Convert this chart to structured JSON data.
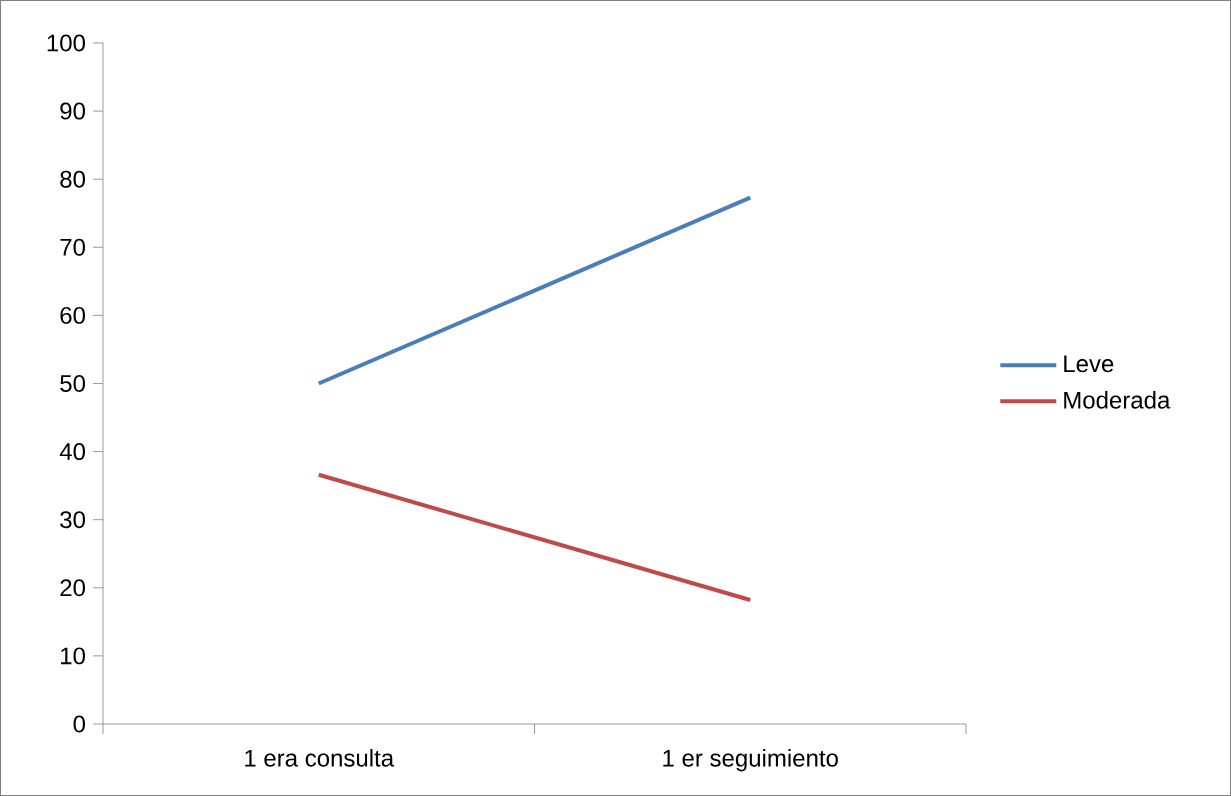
{
  "chart_data": {
    "type": "line",
    "categories": [
      "1 era consulta",
      "1 er seguimiento"
    ],
    "series": [
      {
        "name": "Leve",
        "color": "#4a7ebb",
        "values": [
          50,
          77.3
        ]
      },
      {
        "name": "Moderada",
        "color": "#be4b48",
        "values": [
          36.6,
          18.2
        ]
      }
    ],
    "ylim": [
      0,
      100
    ],
    "yticks": [
      0,
      10,
      20,
      30,
      40,
      50,
      60,
      70,
      80,
      90,
      100
    ],
    "grid": false,
    "legend": "right",
    "marker": "none",
    "line_style": "solid"
  }
}
